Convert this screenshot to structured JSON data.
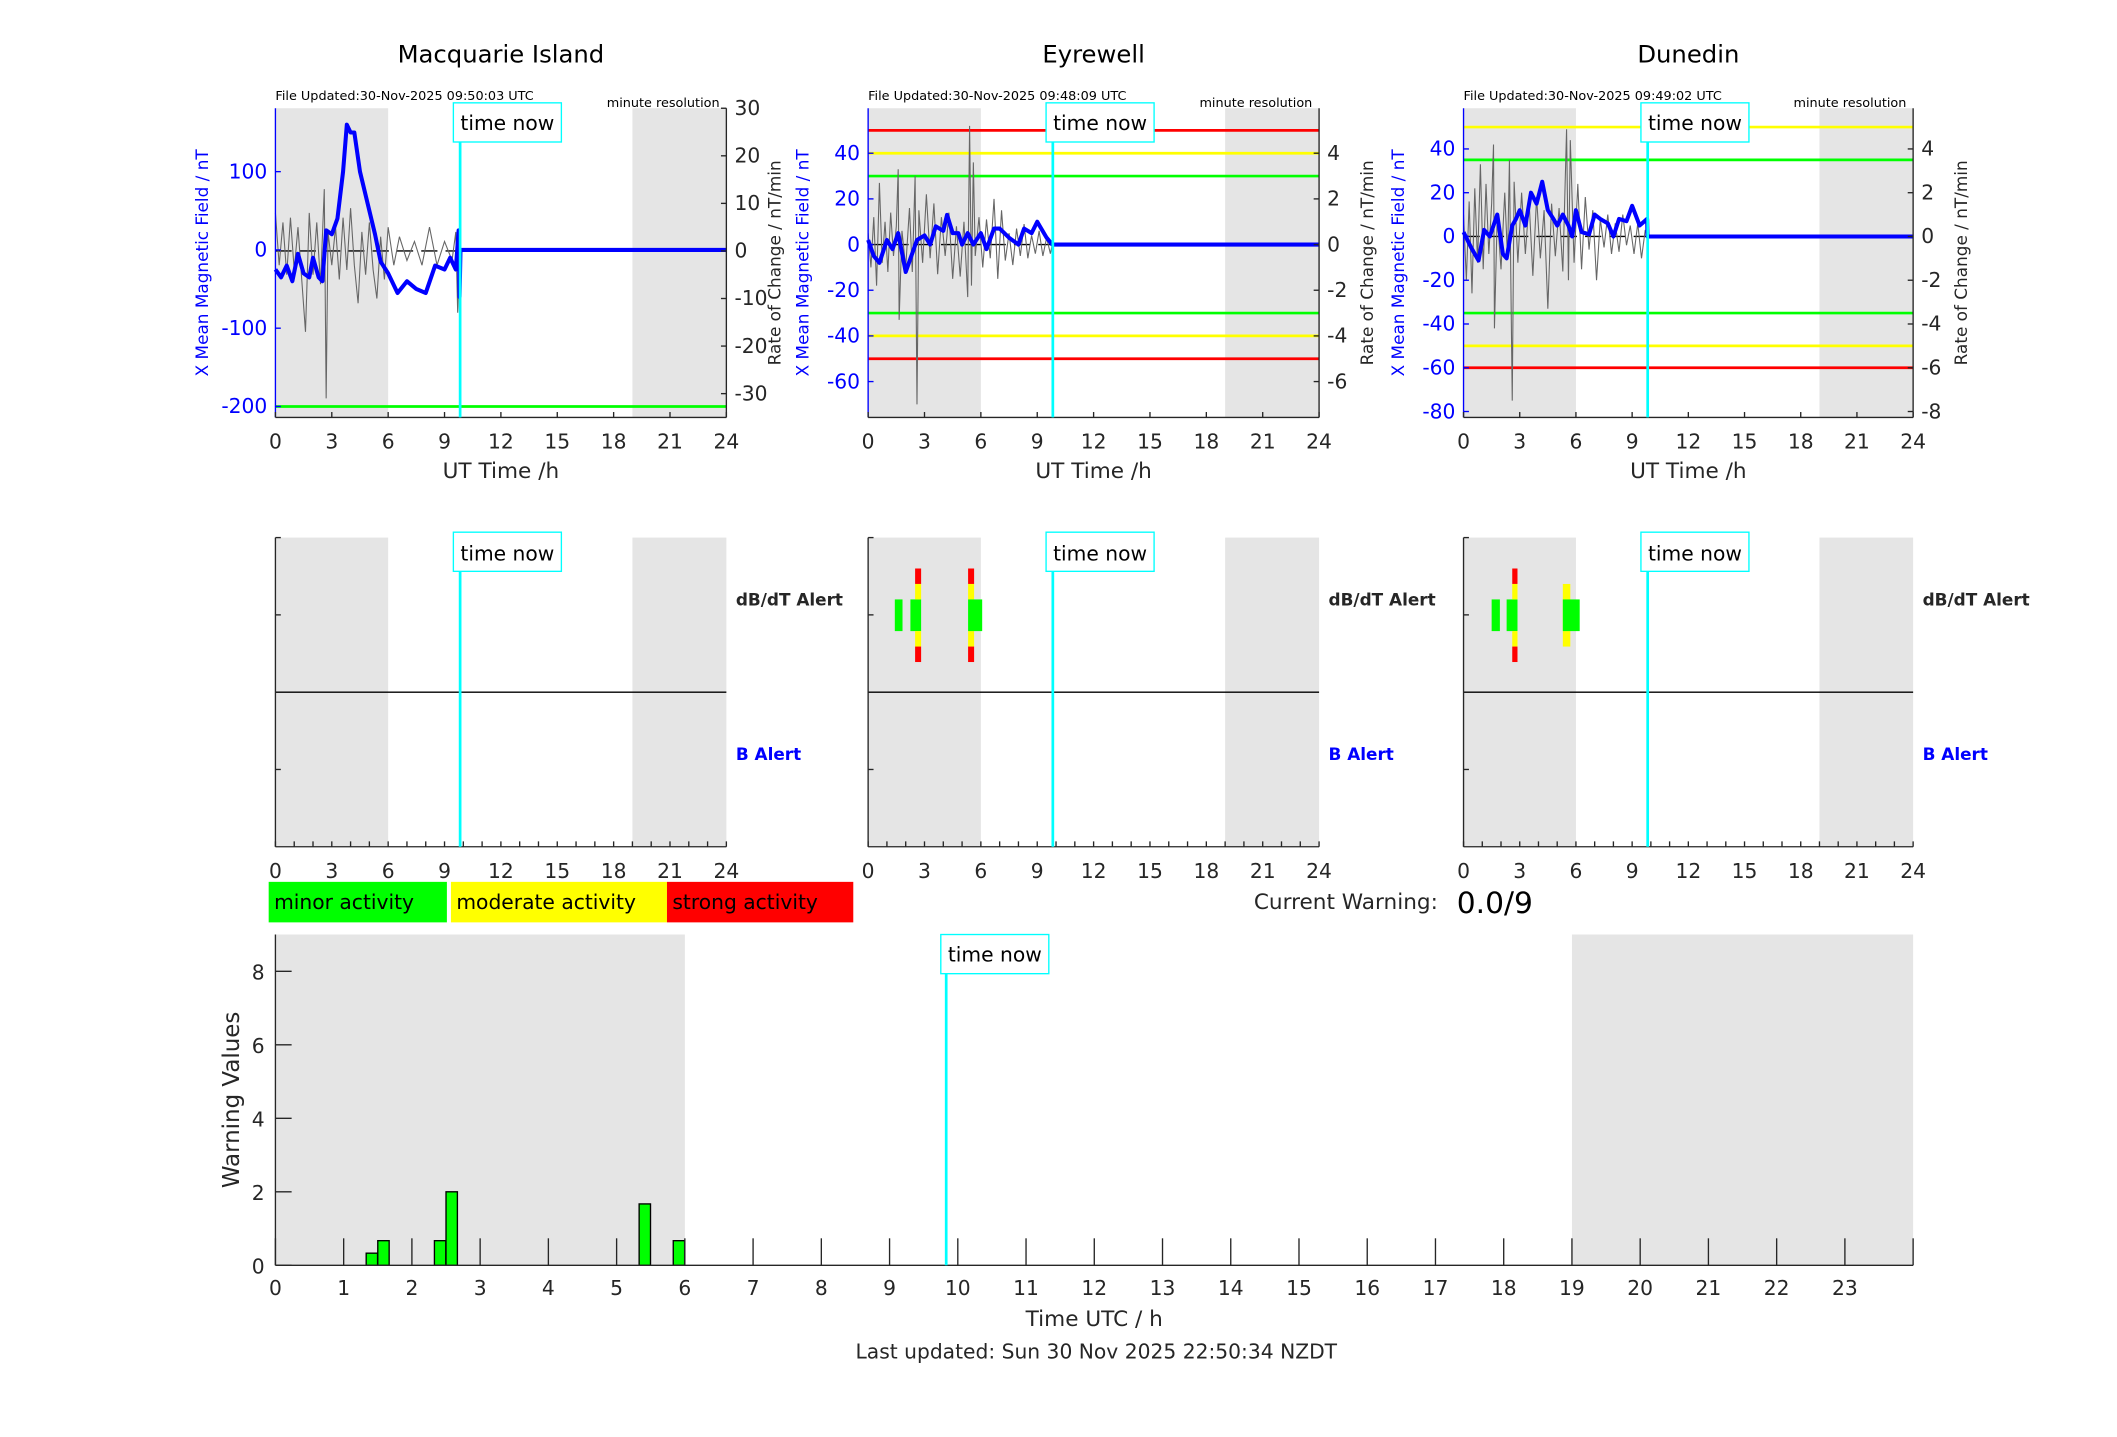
{
  "time_now_label": "time now",
  "time_now_hours": 9.83,
  "night_shading_hours": [
    [
      0,
      6
    ],
    [
      19,
      24
    ]
  ],
  "colors": {
    "field": "#0000ff",
    "rate": "#666666",
    "time_now": "#00ffff",
    "shading": "#e5e5e5",
    "minor": "#00ff00",
    "moderate": "#ffff00",
    "strong": "#ff0000"
  },
  "stations": [
    {
      "title": "Macquarie Island",
      "file_updated": "File Updated:30-Nov-2025 09:50:03 UTC",
      "resolution": "minute resolution",
      "left_ylabel": "X Mean Magnetic Field / nT",
      "right_ylabel": "Rate of Change / nT/min",
      "xlabel": "UT Time /h",
      "left_ylim": [
        -214,
        181
      ],
      "right_ylim": [
        -35,
        30
      ],
      "left_ticks": [
        -200,
        -100,
        0,
        100
      ],
      "right_ticks": [
        -30,
        -20,
        -10,
        0,
        10,
        20,
        30
      ],
      "thresholds": [
        {
          "value": -200,
          "level": "minor"
        }
      ],
      "field_series": [
        [
          0,
          -25
        ],
        [
          0.3,
          -35
        ],
        [
          0.6,
          -20
        ],
        [
          0.9,
          -40
        ],
        [
          1.2,
          -5
        ],
        [
          1.5,
          -30
        ],
        [
          1.8,
          -35
        ],
        [
          2.0,
          -10
        ],
        [
          2.3,
          -35
        ],
        [
          2.5,
          -40
        ],
        [
          2.7,
          25
        ],
        [
          3.0,
          20
        ],
        [
          3.3,
          40
        ],
        [
          3.6,
          100
        ],
        [
          3.8,
          160
        ],
        [
          4.0,
          150
        ],
        [
          4.2,
          150
        ],
        [
          4.5,
          100
        ],
        [
          4.9,
          60
        ],
        [
          5.3,
          20
        ],
        [
          5.6,
          -15
        ],
        [
          6.0,
          -30
        ],
        [
          6.5,
          -55
        ],
        [
          7.0,
          -40
        ],
        [
          7.5,
          -50
        ],
        [
          8.0,
          -55
        ],
        [
          8.5,
          -20
        ],
        [
          9.0,
          -25
        ],
        [
          9.3,
          -10
        ],
        [
          9.6,
          -25
        ],
        [
          9.75,
          25
        ],
        [
          9.8,
          -60
        ],
        [
          9.85,
          0
        ],
        [
          24,
          0
        ]
      ],
      "rate_series": [
        [
          0,
          8
        ],
        [
          0.2,
          -3
        ],
        [
          0.4,
          6
        ],
        [
          0.6,
          -5
        ],
        [
          0.8,
          7
        ],
        [
          1.0,
          -4
        ],
        [
          1.2,
          5
        ],
        [
          1.4,
          -6
        ],
        [
          1.6,
          -17
        ],
        [
          1.8,
          8
        ],
        [
          2.0,
          -5
        ],
        [
          2.2,
          6
        ],
        [
          2.4,
          -7
        ],
        [
          2.6,
          13
        ],
        [
          2.7,
          -31
        ],
        [
          2.8,
          4
        ],
        [
          3.0,
          -3
        ],
        [
          3.2,
          5
        ],
        [
          3.4,
          -6
        ],
        [
          3.6,
          7
        ],
        [
          3.8,
          -4
        ],
        [
          4.0,
          9
        ],
        [
          4.2,
          -3
        ],
        [
          4.4,
          -11
        ],
        [
          4.6,
          4
        ],
        [
          4.8,
          -5
        ],
        [
          5.0,
          6
        ],
        [
          5.2,
          -4
        ],
        [
          5.4,
          -10
        ],
        [
          5.6,
          3
        ],
        [
          5.8,
          -6
        ],
        [
          6.0,
          5
        ],
        [
          6.3,
          -3
        ],
        [
          6.6,
          3
        ],
        [
          7.0,
          -2
        ],
        [
          7.4,
          2
        ],
        [
          7.8,
          -3
        ],
        [
          8.2,
          5
        ],
        [
          8.6,
          -3
        ],
        [
          9.0,
          2
        ],
        [
          9.4,
          -2
        ],
        [
          9.6,
          4
        ],
        [
          9.7,
          -13
        ],
        [
          9.8,
          -4
        ]
      ],
      "alerts": {
        "dbdt_label": "dB/dT Alert",
        "b_label": "B Alert",
        "dbdt": [],
        "b": []
      }
    },
    {
      "title": "Eyrewell",
      "file_updated": "File Updated:30-Nov-2025 09:48:09 UTC",
      "resolution": "minute resolution",
      "left_ylabel": "X Mean Magnetic Field / nT",
      "right_ylabel": "Rate of Change / nT/min",
      "xlabel": "UT Time /h",
      "left_ylim": [
        -75.7,
        59.7
      ],
      "right_ylim": [
        -7.57,
        5.97
      ],
      "left_ticks": [
        -60,
        -40,
        -20,
        0,
        20,
        40
      ],
      "right_ticks": [
        -6,
        -4,
        -2,
        0,
        2,
        4
      ],
      "thresholds": [
        {
          "value": 50,
          "level": "strong"
        },
        {
          "value": 40,
          "level": "moderate"
        },
        {
          "value": 30,
          "level": "minor"
        },
        {
          "value": -30,
          "level": "minor"
        },
        {
          "value": -40,
          "level": "moderate"
        },
        {
          "value": -50,
          "level": "strong"
        }
      ],
      "field_series": [
        [
          0,
          2
        ],
        [
          0.3,
          -5
        ],
        [
          0.6,
          -8
        ],
        [
          1.0,
          2
        ],
        [
          1.3,
          -2
        ],
        [
          1.6,
          5
        ],
        [
          2.0,
          -12
        ],
        [
          2.3,
          -5
        ],
        [
          2.6,
          2
        ],
        [
          3.0,
          4
        ],
        [
          3.3,
          0
        ],
        [
          3.6,
          8
        ],
        [
          4.0,
          6
        ],
        [
          4.2,
          13
        ],
        [
          4.5,
          5
        ],
        [
          4.8,
          5
        ],
        [
          5.0,
          0
        ],
        [
          5.3,
          5
        ],
        [
          5.6,
          0
        ],
        [
          6.0,
          5
        ],
        [
          6.3,
          -2
        ],
        [
          6.7,
          7
        ],
        [
          7.0,
          7
        ],
        [
          7.5,
          3
        ],
        [
          8.0,
          0
        ],
        [
          8.3,
          7
        ],
        [
          8.7,
          5
        ],
        [
          9.0,
          10
        ],
        [
          9.5,
          3
        ],
        [
          9.8,
          0
        ],
        [
          24,
          0
        ]
      ],
      "rate_series": [
        [
          0,
          0.5
        ],
        [
          0.15,
          -1
        ],
        [
          0.3,
          1.2
        ],
        [
          0.45,
          -1.8
        ],
        [
          0.6,
          2.7
        ],
        [
          0.75,
          -0.8
        ],
        [
          0.9,
          1
        ],
        [
          1.05,
          -1.2
        ],
        [
          1.2,
          1.4
        ],
        [
          1.35,
          -0.5
        ],
        [
          1.5,
          0.8
        ],
        [
          1.6,
          3.3
        ],
        [
          1.65,
          -3.3
        ],
        [
          1.8,
          0.6
        ],
        [
          2.0,
          -1
        ],
        [
          2.2,
          1.6
        ],
        [
          2.35,
          -1.2
        ],
        [
          2.5,
          3
        ],
        [
          2.6,
          -7
        ],
        [
          2.7,
          1.5
        ],
        [
          2.9,
          -0.8
        ],
        [
          3.1,
          2.2
        ],
        [
          3.3,
          -0.6
        ],
        [
          3.5,
          1.8
        ],
        [
          3.7,
          -1.3
        ],
        [
          3.9,
          1.2
        ],
        [
          4.1,
          -0.5
        ],
        [
          4.3,
          1.4
        ],
        [
          4.5,
          -1.5
        ],
        [
          4.7,
          0.8
        ],
        [
          4.9,
          -1.4
        ],
        [
          5.1,
          1
        ],
        [
          5.3,
          -2.3
        ],
        [
          5.4,
          5.2
        ],
        [
          5.5,
          -1.8
        ],
        [
          5.6,
          3.6
        ],
        [
          5.7,
          -0.5
        ],
        [
          5.9,
          1.2
        ],
        [
          6.1,
          -1
        ],
        [
          6.3,
          1.1
        ],
        [
          6.5,
          -0.6
        ],
        [
          6.7,
          2
        ],
        [
          6.9,
          -1.5
        ],
        [
          7.1,
          1.5
        ],
        [
          7.3,
          -0.7
        ],
        [
          7.5,
          0.5
        ],
        [
          7.7,
          -0.9
        ],
        [
          7.9,
          0.7
        ],
        [
          8.1,
          -0.5
        ],
        [
          8.3,
          0.9
        ],
        [
          8.5,
          -0.6
        ],
        [
          8.7,
          0.4
        ],
        [
          8.9,
          -0.4
        ],
        [
          9.1,
          0.6
        ],
        [
          9.3,
          -0.5
        ],
        [
          9.5,
          0.3
        ],
        [
          9.7,
          -0.4
        ],
        [
          9.8,
          0
        ]
      ],
      "alerts": {
        "dbdt_label": "dB/dT Alert",
        "b_label": "B Alert",
        "dbdt": [
          {
            "start": 1.42,
            "end": 1.83,
            "level": 1
          },
          {
            "start": 2.25,
            "end": 2.82,
            "level": 1
          },
          {
            "start": 2.5,
            "end": 2.82,
            "level": 3
          },
          {
            "start": 5.32,
            "end": 5.64,
            "level": 3
          },
          {
            "start": 5.32,
            "end": 6.07,
            "level": 1
          }
        ],
        "b": []
      }
    },
    {
      "title": "Dunedin",
      "file_updated": "File Updated:30-Nov-2025 09:49:02 UTC",
      "resolution": "minute resolution",
      "left_ylabel": "X Mean Magnetic Field / nT",
      "right_ylabel": "Rate of Change / nT/min",
      "xlabel": "UT Time /h",
      "left_ylim": [
        -82.7,
        58.6
      ],
      "right_ylim": [
        -8.27,
        5.86
      ],
      "left_ticks": [
        -80,
        -60,
        -40,
        -20,
        0,
        20,
        40
      ],
      "right_ticks": [
        -8,
        -6,
        -4,
        -2,
        0,
        2,
        4
      ],
      "thresholds": [
        {
          "value": 50,
          "level": "moderate"
        },
        {
          "value": 35,
          "level": "minor"
        },
        {
          "value": -35,
          "level": "minor"
        },
        {
          "value": -50,
          "level": "moderate"
        },
        {
          "value": -60,
          "level": "strong"
        }
      ],
      "field_series": [
        [
          0,
          2
        ],
        [
          0.4,
          -5
        ],
        [
          0.8,
          -11
        ],
        [
          1.1,
          3
        ],
        [
          1.4,
          0
        ],
        [
          1.6,
          5
        ],
        [
          1.8,
          10
        ],
        [
          2.1,
          -8
        ],
        [
          2.3,
          -10
        ],
        [
          2.6,
          5
        ],
        [
          2.8,
          8
        ],
        [
          3.0,
          12
        ],
        [
          3.3,
          5
        ],
        [
          3.6,
          20
        ],
        [
          3.9,
          15
        ],
        [
          4.2,
          25
        ],
        [
          4.5,
          12
        ],
        [
          4.8,
          8
        ],
        [
          5.0,
          5
        ],
        [
          5.3,
          10
        ],
        [
          5.6,
          5
        ],
        [
          5.8,
          0
        ],
        [
          6.0,
          12
        ],
        [
          6.3,
          2
        ],
        [
          6.7,
          1
        ],
        [
          7.0,
          10
        ],
        [
          7.3,
          8
        ],
        [
          7.7,
          6
        ],
        [
          8.0,
          0
        ],
        [
          8.3,
          8
        ],
        [
          8.7,
          7
        ],
        [
          9.0,
          14
        ],
        [
          9.4,
          5
        ],
        [
          9.8,
          8
        ],
        [
          9.82,
          0
        ],
        [
          24,
          0
        ]
      ],
      "rate_series": [
        [
          0,
          1
        ],
        [
          0.15,
          -2
        ],
        [
          0.3,
          1.6
        ],
        [
          0.45,
          -2.6
        ],
        [
          0.6,
          2.2
        ],
        [
          0.75,
          -1.2
        ],
        [
          0.9,
          3.3
        ],
        [
          1.05,
          -1.5
        ],
        [
          1.2,
          2.4
        ],
        [
          1.35,
          -0.8
        ],
        [
          1.5,
          1.5
        ],
        [
          1.6,
          4.2
        ],
        [
          1.65,
          -4.2
        ],
        [
          1.8,
          1
        ],
        [
          2.0,
          -1.5
        ],
        [
          2.2,
          2
        ],
        [
          2.35,
          -1
        ],
        [
          2.45,
          3.5
        ],
        [
          2.6,
          -7.5
        ],
        [
          2.7,
          2.5
        ],
        [
          2.9,
          -1.2
        ],
        [
          3.1,
          2
        ],
        [
          3.3,
          -0.8
        ],
        [
          3.5,
          1.6
        ],
        [
          3.7,
          -1.8
        ],
        [
          3.9,
          1.8
        ],
        [
          4.1,
          -1
        ],
        [
          4.3,
          1.2
        ],
        [
          4.5,
          -3.3
        ],
        [
          4.7,
          1.5
        ],
        [
          4.9,
          -0.9
        ],
        [
          5.1,
          1.3
        ],
        [
          5.3,
          -1.6
        ],
        [
          5.5,
          4.9
        ],
        [
          5.6,
          -2
        ],
        [
          5.7,
          4.4
        ],
        [
          5.9,
          -1.2
        ],
        [
          6.1,
          2.4
        ],
        [
          6.3,
          -1.5
        ],
        [
          6.5,
          1.8
        ],
        [
          6.7,
          -0.6
        ],
        [
          6.9,
          1.2
        ],
        [
          7.1,
          -2
        ],
        [
          7.3,
          0.8
        ],
        [
          7.5,
          -0.5
        ],
        [
          7.7,
          1
        ],
        [
          7.9,
          -0.8
        ],
        [
          8.1,
          0.6
        ],
        [
          8.3,
          -0.7
        ],
        [
          8.5,
          1
        ],
        [
          8.7,
          -0.4
        ],
        [
          8.9,
          0.5
        ],
        [
          9.1,
          -0.8
        ],
        [
          9.3,
          0.6
        ],
        [
          9.5,
          -1
        ],
        [
          9.7,
          0.3
        ],
        [
          9.8,
          0
        ]
      ],
      "alerts": {
        "dbdt_label": "dB/dT Alert",
        "b_label": "B Alert",
        "dbdt": [
          {
            "start": 1.5,
            "end": 1.94,
            "level": 1
          },
          {
            "start": 2.3,
            "end": 2.88,
            "level": 1
          },
          {
            "start": 2.6,
            "end": 2.88,
            "level": 3
          },
          {
            "start": 5.3,
            "end": 5.7,
            "level": 2
          },
          {
            "start": 5.3,
            "end": 6.2,
            "level": 1
          }
        ],
        "b": []
      }
    }
  ],
  "legend": [
    {
      "label": "minor activity",
      "level": "minor"
    },
    {
      "label": "moderate activity",
      "level": "moderate"
    },
    {
      "label": "strong activity",
      "level": "strong"
    }
  ],
  "current_warning": {
    "label": "Current Warning:",
    "value": "0.0/9"
  },
  "chart_data": {
    "type": "bar",
    "xlabel": "Time UTC / h",
    "ylabel": "Warning Values",
    "xlim": [
      0,
      24
    ],
    "ylim": [
      0,
      9
    ],
    "xticks": [
      0,
      1,
      2,
      3,
      4,
      5,
      6,
      7,
      8,
      9,
      10,
      11,
      12,
      13,
      14,
      15,
      16,
      17,
      18,
      19,
      20,
      21,
      22,
      23
    ],
    "yticks": [
      0,
      2,
      4,
      6,
      8
    ],
    "bin_width_hours": 0.1667,
    "bars": [
      {
        "start": 1.33,
        "value": 0.33
      },
      {
        "start": 1.5,
        "value": 0.67
      },
      {
        "start": 2.33,
        "value": 0.67
      },
      {
        "start": 2.5,
        "value": 2.0
      },
      {
        "start": 5.33,
        "value": 1.67
      },
      {
        "start": 5.83,
        "value": 0.67
      }
    ],
    "bar_color": "#00ff00"
  },
  "footer": {
    "last_updated": "Last updated: Sun 30 Nov 2025 22:50:34 NZDT"
  }
}
